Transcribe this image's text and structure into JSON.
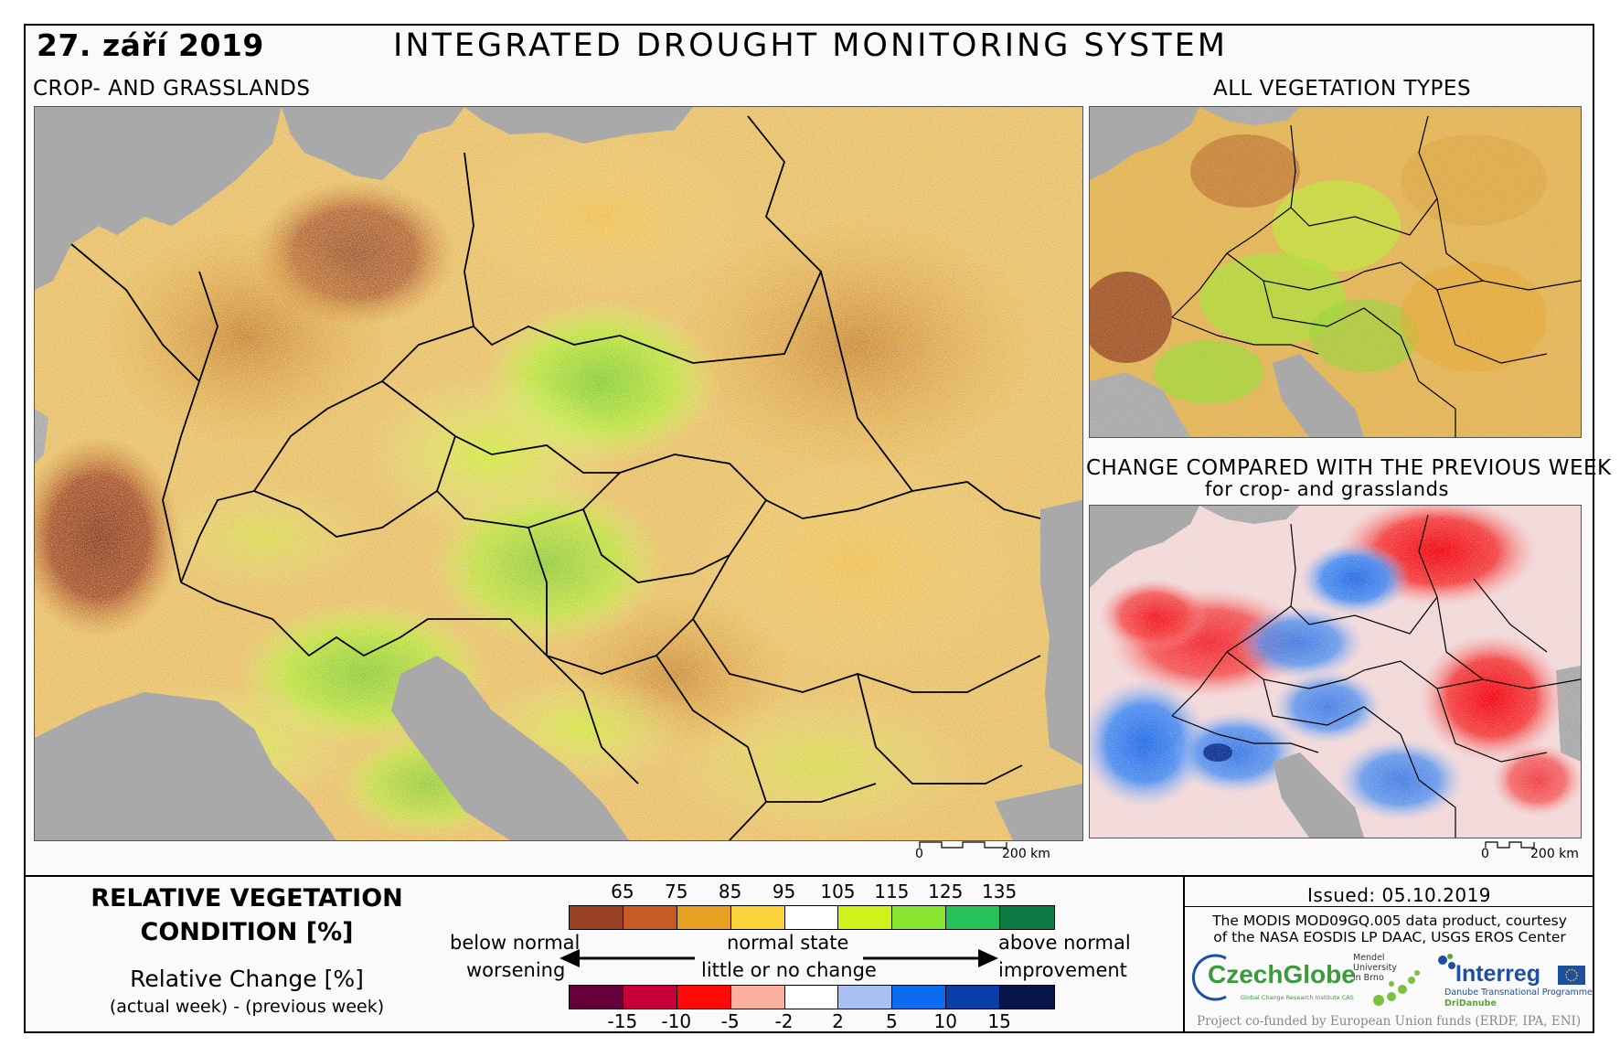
{
  "header": {
    "date": "27. září 2019",
    "title": "INTEGRATED DROUGHT MONITORING SYSTEM"
  },
  "main_map": {
    "label": "CROP- AND GRASSLANDS",
    "scale": {
      "zero": "0",
      "dist": "200 km"
    }
  },
  "veg_map": {
    "label": "ALL VEGETATION TYPES"
  },
  "change_map": {
    "label_line1": "CHANGE COMPARED WITH THE PREVIOUS WEEK",
    "label_line2": "for crop- and grasslands",
    "scale": {
      "zero": "0",
      "dist": "200 km"
    }
  },
  "legend": {
    "title_line1": "RELATIVE VEGETATION",
    "title_line2": "CONDITION [%]",
    "sub_line1": "Relative Change [%]",
    "sub_line2": "(actual week) - (previous week)",
    "condition_ticks": [
      "65",
      "75",
      "85",
      "95",
      "105",
      "115",
      "125",
      "135"
    ],
    "condition_colors": [
      "#9b4226",
      "#c85a26",
      "#e8a020",
      "#fbd338",
      "#ffffff",
      "#cff21d",
      "#86e630",
      "#27c257",
      "#0a7a42"
    ],
    "change_ticks": [
      "-15",
      "-10",
      "-5",
      "-2",
      "2",
      "5",
      "10",
      "15"
    ],
    "change_colors": [
      "#66003a",
      "#c8003a",
      "#ff0808",
      "#fab09a",
      "#ffffff",
      "#a8c0f4",
      "#0b6cf0",
      "#0b3fa8",
      "#06154a"
    ],
    "below_normal": "below normal",
    "worsening": "worsening",
    "normal_state": "normal state",
    "little_change": "little or no change",
    "above_normal": "above normal",
    "improvement": "improvement"
  },
  "info": {
    "issued": "Issued: 05.10.2019",
    "credit_line1": "The MODIS MOD09GQ.005 data product, courtesy",
    "credit_line2": "of the NASA EOSDIS LP DAAC, USGS EROS Center",
    "funded": "Project co-funded by European Union funds (ERDF, IPA, ENI)",
    "logo_czechglobe": "CzechGlobe",
    "logo_czechglobe_sub": "Global Change Research Institute CAS",
    "logo_mendel": [
      "Mendel",
      "University",
      "in Brno"
    ],
    "logo_interreg": "Interreg",
    "logo_interreg_sub": "Danube Transnational Programme",
    "logo_interreg_sub2": "DriDanube"
  }
}
